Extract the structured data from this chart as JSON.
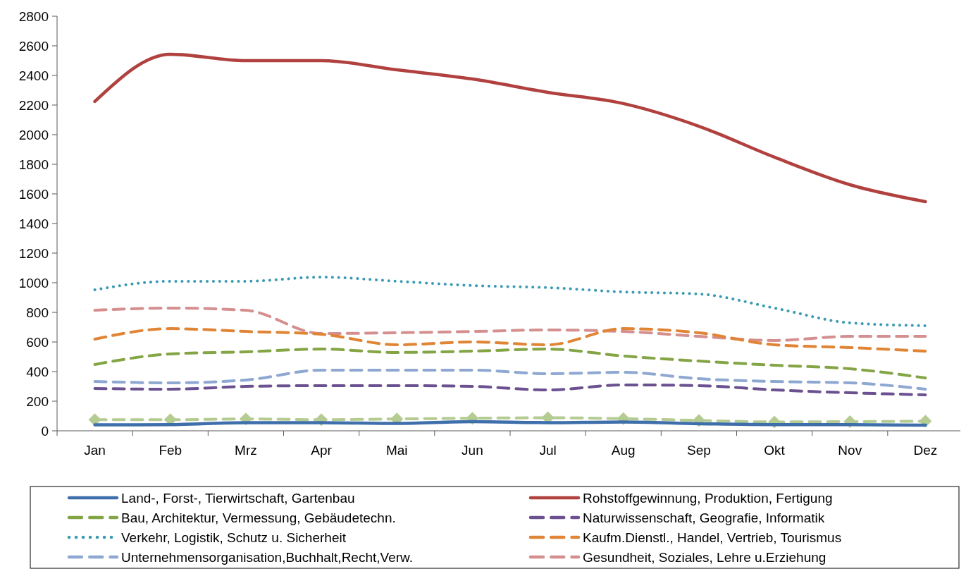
{
  "chart_data": {
    "type": "line",
    "categories": [
      "Jan",
      "Feb",
      "Mrz",
      "Apr",
      "Mai",
      "Jun",
      "Jul",
      "Aug",
      "Sep",
      "Okt",
      "Nov",
      "Dez"
    ],
    "ylim": [
      0,
      2800
    ],
    "yticks": [
      0,
      200,
      400,
      600,
      800,
      1000,
      1200,
      1400,
      1600,
      1800,
      2000,
      2200,
      2400,
      2600,
      2800
    ],
    "grid": false,
    "legend": "bottom",
    "series": [
      {
        "name": "Land-, Forst-, Tierwirtschaft, Gartenbau",
        "color": "#3f6fab",
        "line_style": "solid",
        "values": [
          40,
          42,
          55,
          55,
          50,
          62,
          55,
          60,
          48,
          42,
          42,
          38
        ]
      },
      {
        "name": "Rohstoffgewinnung, Produktion, Fertigung",
        "color": "#b0413e",
        "line_style": "solid",
        "values": [
          2224,
          2543,
          2500,
          2500,
          2438,
          2376,
          2286,
          2210,
          2057,
          1848,
          1662,
          1548
        ]
      },
      {
        "name": "Bau, Architektur, Vermessung, Gebäudetechn.",
        "color": "#84a545",
        "line_style": "dashed",
        "values": [
          448,
          519,
          533,
          552,
          529,
          538,
          552,
          505,
          471,
          443,
          419,
          357
        ]
      },
      {
        "name": "Naturwissenschaft, Geografie, Informatik",
        "color": "#6b5190",
        "line_style": "dashed",
        "values": [
          286,
          281,
          300,
          305,
          305,
          300,
          276,
          310,
          305,
          276,
          257,
          243
        ]
      },
      {
        "name": "Verkehr, Logistik, Schutz u. Sicherheit",
        "color": "#3a9ab4",
        "line_style": "dotted",
        "values": [
          952,
          1010,
          1010,
          1038,
          1010,
          981,
          967,
          938,
          924,
          829,
          729,
          710
        ]
      },
      {
        "name": "Kaufm.Dienstl., Handel, Vertrieb, Tourismus",
        "color": "#e08535",
        "line_style": "dashed",
        "values": [
          619,
          690,
          671,
          652,
          581,
          600,
          581,
          690,
          662,
          581,
          562,
          538
        ]
      },
      {
        "name": "Unternehmensorganisation,Buchhalt,Recht,Verw.",
        "color": "#8ea8d2",
        "line_style": "dashed",
        "values": [
          333,
          324,
          343,
          410,
          410,
          410,
          386,
          395,
          352,
          333,
          324,
          281
        ]
      },
      {
        "name": "Gesundheit, Soziales, Lehre u.Erziehung",
        "color": "#d58f8f",
        "line_style": "dashed",
        "values": [
          814,
          829,
          814,
          657,
          662,
          671,
          681,
          671,
          638,
          610,
          638,
          638
        ]
      },
      {
        "color": "#b4cb92",
        "line_style": "dashed",
        "marker": "diamond",
        "values": [
          75,
          75,
          80,
          75,
          80,
          85,
          88,
          82,
          70,
          60,
          62,
          65
        ]
      }
    ]
  }
}
